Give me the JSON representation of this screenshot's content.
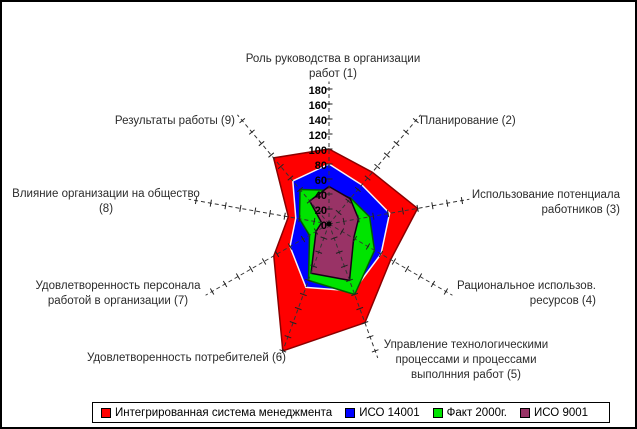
{
  "chart_data": {
    "type": "radar",
    "title": "",
    "categories": [
      "Роль руководства в организации\nработ (1)",
      "Планирование (2)",
      "Использование потенциала\nработников (3)",
      "Рациональное использов.\nресурсов (4)",
      "Управление технологическими\nпроцессами и процессами\nвыполнния работ (5)",
      "Удовлетворенность потребителей (6)",
      "Удовлетворенность персонала\nработой в организации (7)",
      "Влияние организации на общество\n(8)",
      "Результаты работы (9)"
    ],
    "axis": {
      "min": 0,
      "max": 180,
      "step": 20,
      "tick_labels": [
        "0",
        "20",
        "40",
        "60",
        "80",
        "100",
        "120",
        "140",
        "160",
        "180"
      ]
    },
    "series": [
      {
        "name": "Интегрированная система менеджмента",
        "color": "#ff0000",
        "stroke": "#8b0000",
        "values": [
          100,
          90,
          120,
          95,
          140,
          180,
          85,
          55,
          115
        ]
      },
      {
        "name": "ИСО 14001",
        "color": "#0000ff",
        "stroke": "#f7f2f7",
        "values": [
          80,
          68,
          82,
          80,
          95,
          90,
          60,
          45,
          75
        ]
      },
      {
        "name": "Факт 2000г.",
        "color": "#00e400",
        "stroke": "#005f00",
        "values": [
          45,
          45,
          55,
          70,
          100,
          80,
          30,
          40,
          60
        ]
      },
      {
        "name": "ИСО 9001",
        "color": "#993366",
        "stroke": "#140014",
        "values": [
          50,
          44,
          40,
          38,
          80,
          70,
          20,
          10,
          40
        ]
      }
    ],
    "legend_position": "bottom",
    "grid": "dashed-spokes"
  }
}
